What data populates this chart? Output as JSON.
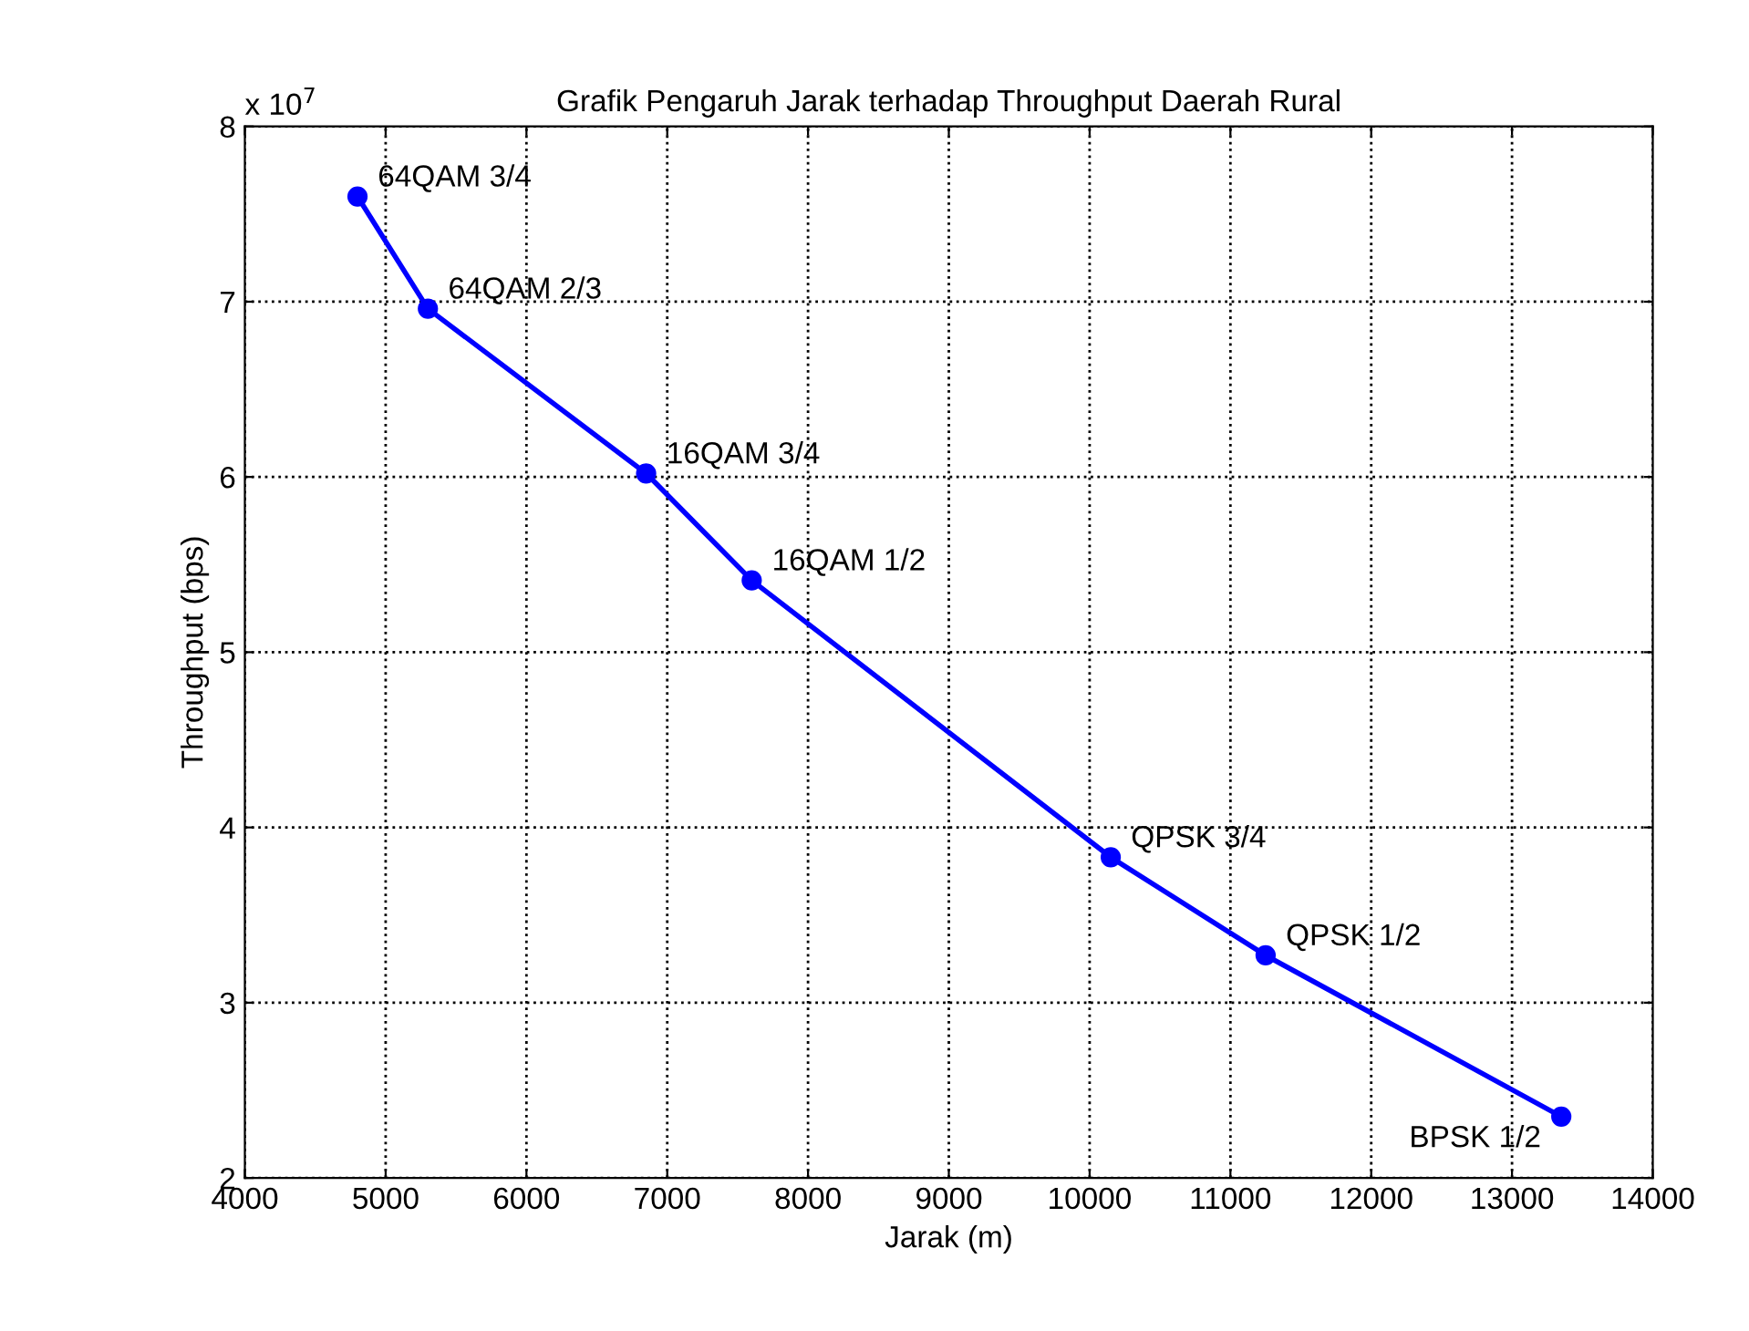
{
  "chart_data": {
    "type": "line",
    "title": "Grafik Pengaruh Jarak terhadap Throughput Daerah Rural",
    "xlabel": "Jarak (m)",
    "ylabel": "Throughput (bps)",
    "x": [
      4800,
      5300,
      6850,
      7600,
      10150,
      11250,
      13350
    ],
    "series": [
      {
        "color": "#0000ff",
        "values": [
          7.6,
          6.96,
          6.02,
          5.41,
          3.83,
          3.27,
          2.35
        ]
      }
    ],
    "xlim": [
      4000,
      14000
    ],
    "xticks": [
      4000,
      5000,
      6000,
      7000,
      8000,
      9000,
      10000,
      11000,
      12000,
      13000,
      14000
    ],
    "ylim": [
      2,
      8
    ],
    "yticks": [
      2,
      3,
      4,
      5,
      6,
      7,
      8
    ],
    "annotations": [
      "x 10$^{7}$",
      {
        "text": "64QAM 3/4",
        "x": 4800,
        "y": 7.6
      },
      {
        "text": "64QAM 2/3",
        "x": 5300,
        "y": 6.96
      },
      {
        "text": "16QAM 3/4",
        "x": 6850,
        "y": 6.02
      },
      {
        "text": "16QAM 1/2",
        "x": 7600,
        "y": 5.41
      },
      {
        "text": "QPSK 3/4",
        "x": 10150,
        "y": 3.83
      },
      {
        "text": "QPSK 1/2",
        "x": 11250,
        "y": 3.27
      },
      {
        "text": "BPSK 1/2",
        "x": 13350,
        "y": 2.35
      }
    ],
    "grid": true,
    "marker": "circle",
    "line_style": "solid"
  }
}
